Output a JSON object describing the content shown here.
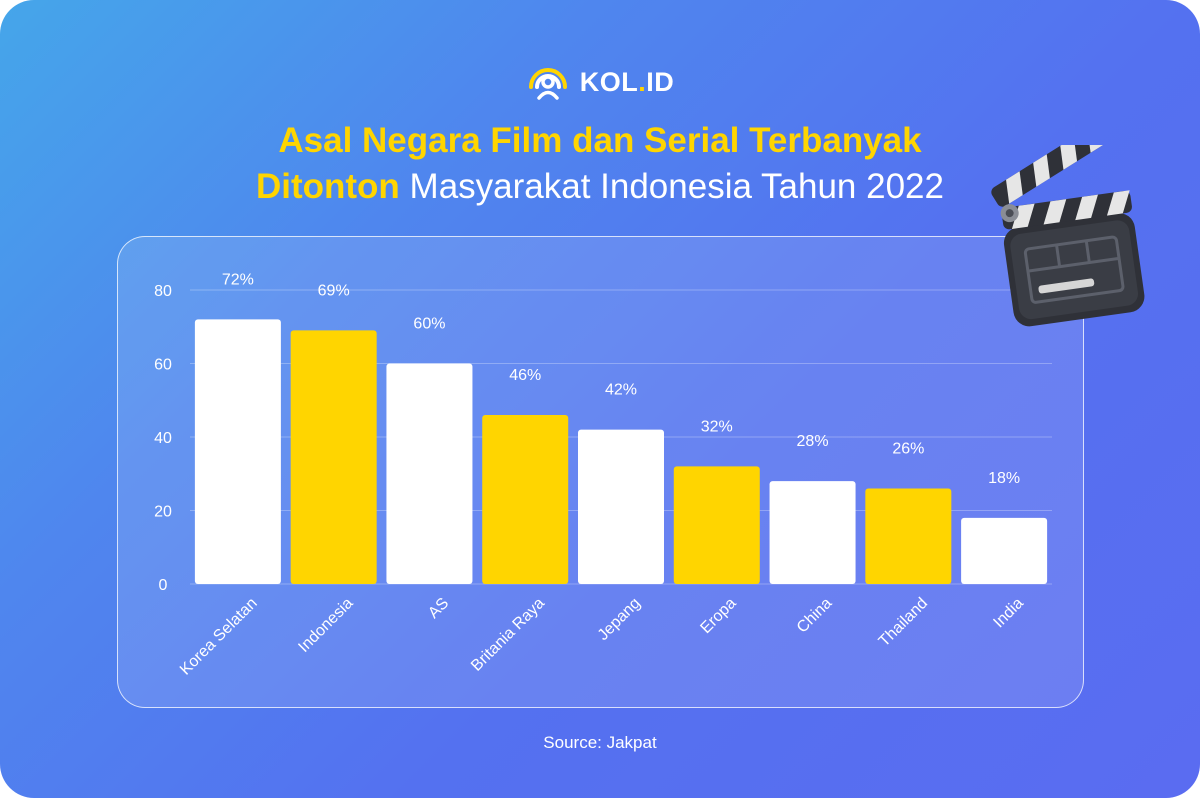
{
  "brand": {
    "name_main": "KOL",
    "name_dot": ".",
    "name_suffix": "ID"
  },
  "title": {
    "line1": "Asal Negara Film dan Serial Terbanyak",
    "line2_highlight": "Ditonton",
    "line2_rest": " Masyarakat Indonesia Tahun 2022"
  },
  "source": "Source: Jakpat",
  "colors": {
    "white_bar": "#ffffff",
    "yellow_bar": "#ffd500",
    "accent": "#ffd500"
  },
  "icons": {
    "logo": "kol-logo-icon",
    "decoration": "clapperboard-icon"
  },
  "chart_data": {
    "type": "bar",
    "categories": [
      "Korea Selatan",
      "Indonesia",
      "AS",
      "Britania Raya",
      "Jepang",
      "Eropa",
      "China",
      "Thailand",
      "India"
    ],
    "values": [
      72,
      69,
      60,
      46,
      42,
      32,
      28,
      26,
      18
    ],
    "data_labels": [
      "72%",
      "69%",
      "60%",
      "46%",
      "42%",
      "32%",
      "28%",
      "26%",
      "18%"
    ],
    "bar_colors": [
      "#ffffff",
      "#ffd500",
      "#ffffff",
      "#ffd500",
      "#ffffff",
      "#ffd500",
      "#ffffff",
      "#ffd500",
      "#ffffff"
    ],
    "ylim": [
      0,
      80
    ],
    "yticks": [
      0,
      20,
      40,
      60,
      80
    ],
    "grid": true,
    "title": "",
    "xlabel": "",
    "ylabel": ""
  }
}
